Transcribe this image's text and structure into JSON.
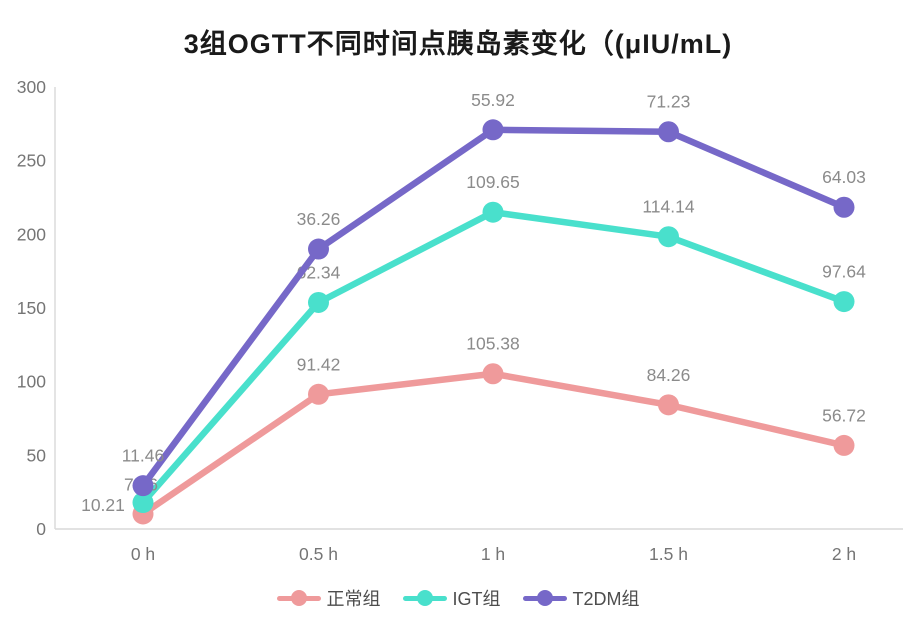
{
  "title": "3组OGTT不同时间点胰岛素变化（(μIU/mL)",
  "chart_data": {
    "type": "line",
    "stacked": true,
    "title": "3组OGTT不同时间点胰岛素变化（(μIU/mL)",
    "categories": [
      "0 h",
      "0.5 h",
      "1 h",
      "1.5 h",
      "2 h"
    ],
    "series": [
      {
        "name": "正常组",
        "color": "#EF9A9B",
        "values": [
          10.21,
          91.42,
          105.38,
          84.26,
          56.72
        ],
        "labels": [
          "10.21",
          "91.42",
          "105.38",
          "84.26",
          "56.72"
        ]
      },
      {
        "name": "IGT组",
        "color": "#49E0CC",
        "values": [
          7.76,
          62.34,
          109.65,
          114.14,
          97.64
        ],
        "labels": [
          "7.76",
          "62.34",
          "109.65",
          "114.14",
          "97.64"
        ]
      },
      {
        "name": "T2DM组",
        "color": "#7668C8",
        "values": [
          11.46,
          36.26,
          55.92,
          71.23,
          64.03
        ],
        "labels": [
          "11.46",
          "36.26",
          "55.92",
          "71.23",
          "64.03"
        ]
      }
    ],
    "stacked_totals": [
      [
        10.21,
        91.42,
        105.38,
        84.26,
        56.72
      ],
      [
        17.97,
        153.76,
        215.03,
        198.4,
        154.36
      ],
      [
        29.43,
        190.02,
        270.95,
        269.63,
        218.39
      ]
    ],
    "xlabel": "",
    "ylabel": "",
    "ylim": [
      0,
      300
    ],
    "yticks": [
      0,
      50,
      100,
      150,
      200,
      250,
      300
    ],
    "grid": false,
    "legend_position": "bottom",
    "colors": {
      "axis_line": "#d9d9d9",
      "tick_label": "#757575",
      "data_label": "#8b8b8b",
      "title": "#1a1a1a",
      "legend_label": "#4d4d4d"
    }
  }
}
